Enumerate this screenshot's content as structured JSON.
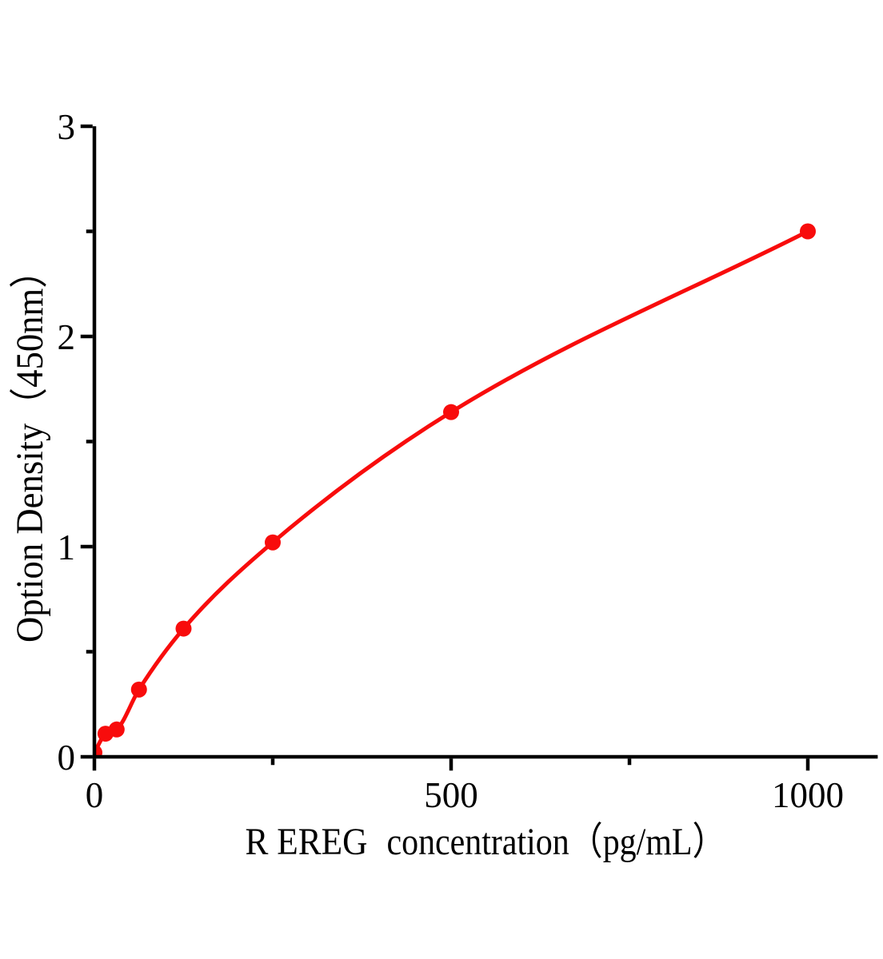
{
  "chart_data": {
    "type": "line",
    "title": "",
    "xlabel": "R EREG concentration（pg/mL）",
    "xlabel_parts": {
      "prefix": "R EREG",
      "suffix": "concentration（pg/mL）"
    },
    "ylabel": "Option Density（450nm）",
    "x": [
      0,
      15.6,
      31.2,
      62.5,
      125,
      250,
      500,
      1000
    ],
    "y": [
      0.02,
      0.11,
      0.13,
      0.32,
      0.61,
      1.02,
      1.64,
      2.5
    ],
    "xlim": [
      0,
      1098
    ],
    "ylim": [
      0,
      3
    ],
    "x_major_ticks": [
      0,
      500,
      1000
    ],
    "x_minor_ticks": [
      250,
      750
    ],
    "y_major_ticks": [
      0,
      1,
      2,
      3
    ],
    "y_minor_ticks": [
      0.5,
      1.5,
      2.5
    ],
    "grid": false,
    "legend": false,
    "marker": "circle",
    "line_color": "#f80c0c",
    "axis_color": "#000000",
    "background_color": "#ffffff"
  }
}
